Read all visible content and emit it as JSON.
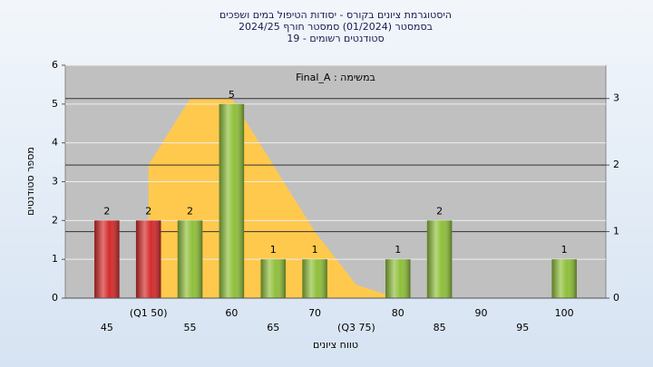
{
  "chart_data": {
    "type": "bar",
    "title": [
      "היסטוגרמת ציונים בקורס - יסודות הטיפול במים ושפכים",
      "בסמסטר (01/2024) סמסטר חורף 2024/25",
      "סטודנטים רשומים - 19"
    ],
    "annotation": "Final_A : במשימה",
    "x_label": "טווח ציונים",
    "y_label": "מספר סטודנטים",
    "categories": [
      "45",
      "(Q1 50)",
      "55",
      "60",
      "65",
      "70",
      "(Q3 75)",
      "80",
      "85",
      "90",
      "95",
      "100"
    ],
    "values": [
      2,
      2,
      2,
      5,
      1,
      1,
      0,
      1,
      2,
      0,
      0,
      1
    ],
    "colors": [
      "#d42a2a",
      "#d42a2a",
      "#8fbf3a",
      "#8fbf3a",
      "#8fbf3a",
      "#8fbf3a",
      "#8fbf3a",
      "#8fbf3a",
      "#8fbf3a",
      "#8fbf3a",
      "#8fbf3a",
      "#8fbf3a"
    ],
    "area": {
      "values": [
        null,
        2,
        3,
        3,
        2,
        1,
        0.2,
        0,
        null,
        null,
        null,
        null
      ],
      "color": "#ffc94d",
      "axis": "y2"
    },
    "ylim": [
      0,
      6
    ],
    "yticks": [
      0,
      1,
      2,
      3,
      4,
      5,
      6
    ],
    "y2lim": [
      0,
      3.5
    ],
    "y2ticks": [
      0,
      1,
      2,
      3
    ],
    "grid": true
  }
}
